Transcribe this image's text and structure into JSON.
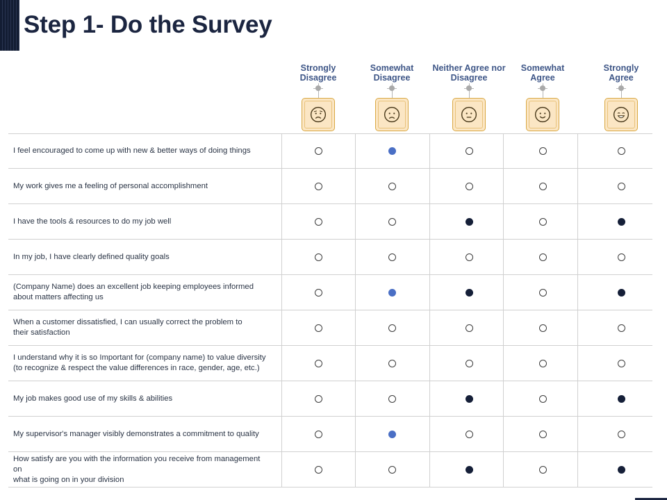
{
  "title": "Step 1- Do the Survey",
  "scale": [
    {
      "label": "Strongly\nDisagree",
      "icon": "worried-face-icon"
    },
    {
      "label": "Somewhat\nDisagree",
      "icon": "frowning-face-icon"
    },
    {
      "label": "Neither Agree nor\nDisagree",
      "icon": "neutral-face-icon"
    },
    {
      "label": "Somewhat\nAgree",
      "icon": "smiling-face-icon"
    },
    {
      "label": "Strongly\nAgree",
      "icon": "grinning-face-icon"
    }
  ],
  "colors": {
    "title": "#1b2540",
    "header": "#3e5687",
    "emoji_fill": "#fbe6c4",
    "emoji_border": "#d9a741",
    "selected_blue": "#4a6fc5",
    "selected_navy": "#151f38"
  },
  "rows": [
    {
      "statement": "I feel encouraged to come up with new & better ways of doing things",
      "selected": [
        {
          "col": 1,
          "style": "blue"
        }
      ]
    },
    {
      "statement": "My work gives me a feeling of personal accomplishment",
      "selected": []
    },
    {
      "statement": "I have the tools & resources  to do my job well",
      "selected": [
        {
          "col": 2,
          "style": "navy"
        },
        {
          "col": 4,
          "style": "navy"
        }
      ]
    },
    {
      "statement": "In my job, I have clearly defined quality goals",
      "selected": []
    },
    {
      "statement": "(Company Name) does an excellent job keeping employees informed\nabout matters affecting us",
      "selected": [
        {
          "col": 1,
          "style": "blue"
        },
        {
          "col": 2,
          "style": "navy"
        },
        {
          "col": 4,
          "style": "navy"
        }
      ]
    },
    {
      "statement": "When a customer  dissatisfied, I can usually correct  the problem to\ntheir satisfaction",
      "selected": []
    },
    {
      "statement": "I understand why it is so Important for (company name) to value diversity\n(to recognize & respect the value differences in race,  gender, age, etc.)",
      "selected": []
    },
    {
      "statement": "My job makes good use  of my skills & abilities",
      "selected": [
        {
          "col": 2,
          "style": "navy"
        },
        {
          "col": 4,
          "style": "navy"
        }
      ]
    },
    {
      "statement": "My supervisor's manager visibly demonstrates a commitment to quality",
      "selected": [
        {
          "col": 1,
          "style": "blue"
        }
      ]
    },
    {
      "statement": "How satisfy are you with the information you receive from management\non\nwhat is going on in your division",
      "selected": [
        {
          "col": 2,
          "style": "navy"
        },
        {
          "col": 4,
          "style": "navy"
        }
      ]
    }
  ]
}
